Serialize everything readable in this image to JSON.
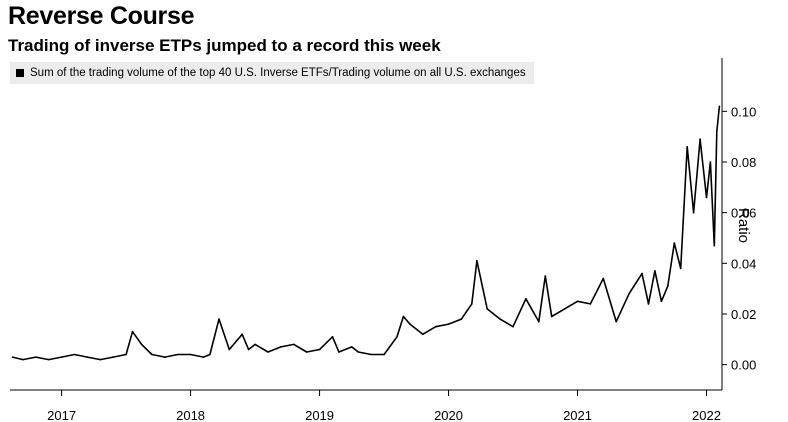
{
  "title": "Reverse Course",
  "subtitle": "Trading of inverse ETPs jumped to a record this week",
  "chart_data": {
    "type": "line",
    "ylabel": "Ratio",
    "ylim": [
      -0.01,
      0.11
    ],
    "y_ticks": [
      "0.00",
      "0.02",
      "0.04",
      "0.06",
      "0.08",
      "0.10"
    ],
    "y_tick_values": [
      0.0,
      0.02,
      0.04,
      0.06,
      0.08,
      0.1
    ],
    "x_ticks": [
      "2017",
      "2018",
      "2019",
      "2020",
      "2021",
      "2022"
    ],
    "x_tick_values": [
      2017.0,
      2018.0,
      2019.0,
      2020.0,
      2021.0,
      2022.0
    ],
    "xlim": [
      2016.6,
      2022.12
    ],
    "y_axis_side": "right",
    "grid": false,
    "series": [
      {
        "name": "Sum of the trading volume of the top 40 U.S. Inverse ETFs/Trading volume on all U.S. exchanges",
        "color": "#000000",
        "x": [
          2016.62,
          2016.7,
          2016.8,
          2016.9,
          2017.0,
          2017.1,
          2017.2,
          2017.3,
          2017.4,
          2017.5,
          2017.55,
          2017.62,
          2017.7,
          2017.8,
          2017.9,
          2018.0,
          2018.1,
          2018.15,
          2018.22,
          2018.3,
          2018.4,
          2018.45,
          2018.5,
          2018.6,
          2018.7,
          2018.8,
          2018.9,
          2019.0,
          2019.1,
          2019.15,
          2019.25,
          2019.3,
          2019.4,
          2019.5,
          2019.6,
          2019.65,
          2019.7,
          2019.8,
          2019.9,
          2020.0,
          2020.1,
          2020.18,
          2020.22,
          2020.3,
          2020.4,
          2020.5,
          2020.6,
          2020.7,
          2020.75,
          2020.8,
          2020.9,
          2021.0,
          2021.1,
          2021.2,
          2021.3,
          2021.4,
          2021.5,
          2021.55,
          2021.6,
          2021.65,
          2021.7,
          2021.75,
          2021.8,
          2021.85,
          2021.9,
          2021.95,
          2022.0,
          2022.03,
          2022.06,
          2022.08,
          2022.1
        ],
        "y": [
          0.003,
          0.002,
          0.003,
          0.002,
          0.003,
          0.004,
          0.003,
          0.002,
          0.003,
          0.004,
          0.013,
          0.008,
          0.004,
          0.003,
          0.004,
          0.004,
          0.003,
          0.004,
          0.018,
          0.006,
          0.012,
          0.006,
          0.008,
          0.005,
          0.007,
          0.008,
          0.005,
          0.006,
          0.011,
          0.005,
          0.007,
          0.005,
          0.004,
          0.004,
          0.011,
          0.019,
          0.016,
          0.012,
          0.015,
          0.016,
          0.018,
          0.024,
          0.041,
          0.022,
          0.018,
          0.015,
          0.026,
          0.017,
          0.035,
          0.019,
          0.022,
          0.025,
          0.024,
          0.034,
          0.017,
          0.028,
          0.036,
          0.024,
          0.037,
          0.025,
          0.031,
          0.048,
          0.038,
          0.086,
          0.06,
          0.089,
          0.066,
          0.08,
          0.047,
          0.092,
          0.102
        ]
      }
    ]
  }
}
